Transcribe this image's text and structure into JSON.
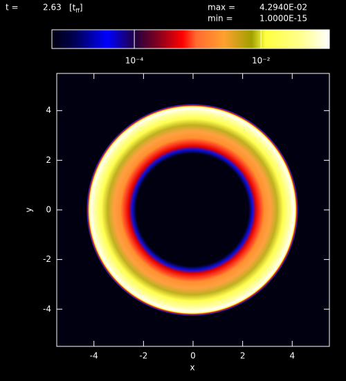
{
  "chart_data": {
    "type": "image",
    "header": {
      "time_label": "t =",
      "time": "2.63",
      "unit_open": "[t",
      "unit_sub": "ff",
      "unit_close": "]",
      "max_label": "max =",
      "max": "4.2940E-02",
      "min_label": "min =",
      "min": "1.0000E-15"
    },
    "colorbar": {
      "log": true,
      "clim": [
        5e-06,
        0.12
      ],
      "ticks": [
        {
          "value": 0.0001,
          "label": "10⁻⁴"
        },
        {
          "value": 0.01,
          "label": "10⁻²"
        }
      ]
    },
    "xlabel": "x",
    "ylabel": "y",
    "xlim": [
      -5.5,
      5.5
    ],
    "ylim": [
      -5.5,
      5.5
    ],
    "xticks": [
      -4,
      -2,
      0,
      2,
      4
    ],
    "yticks": [
      -4,
      -2,
      0,
      2,
      4
    ]
  }
}
